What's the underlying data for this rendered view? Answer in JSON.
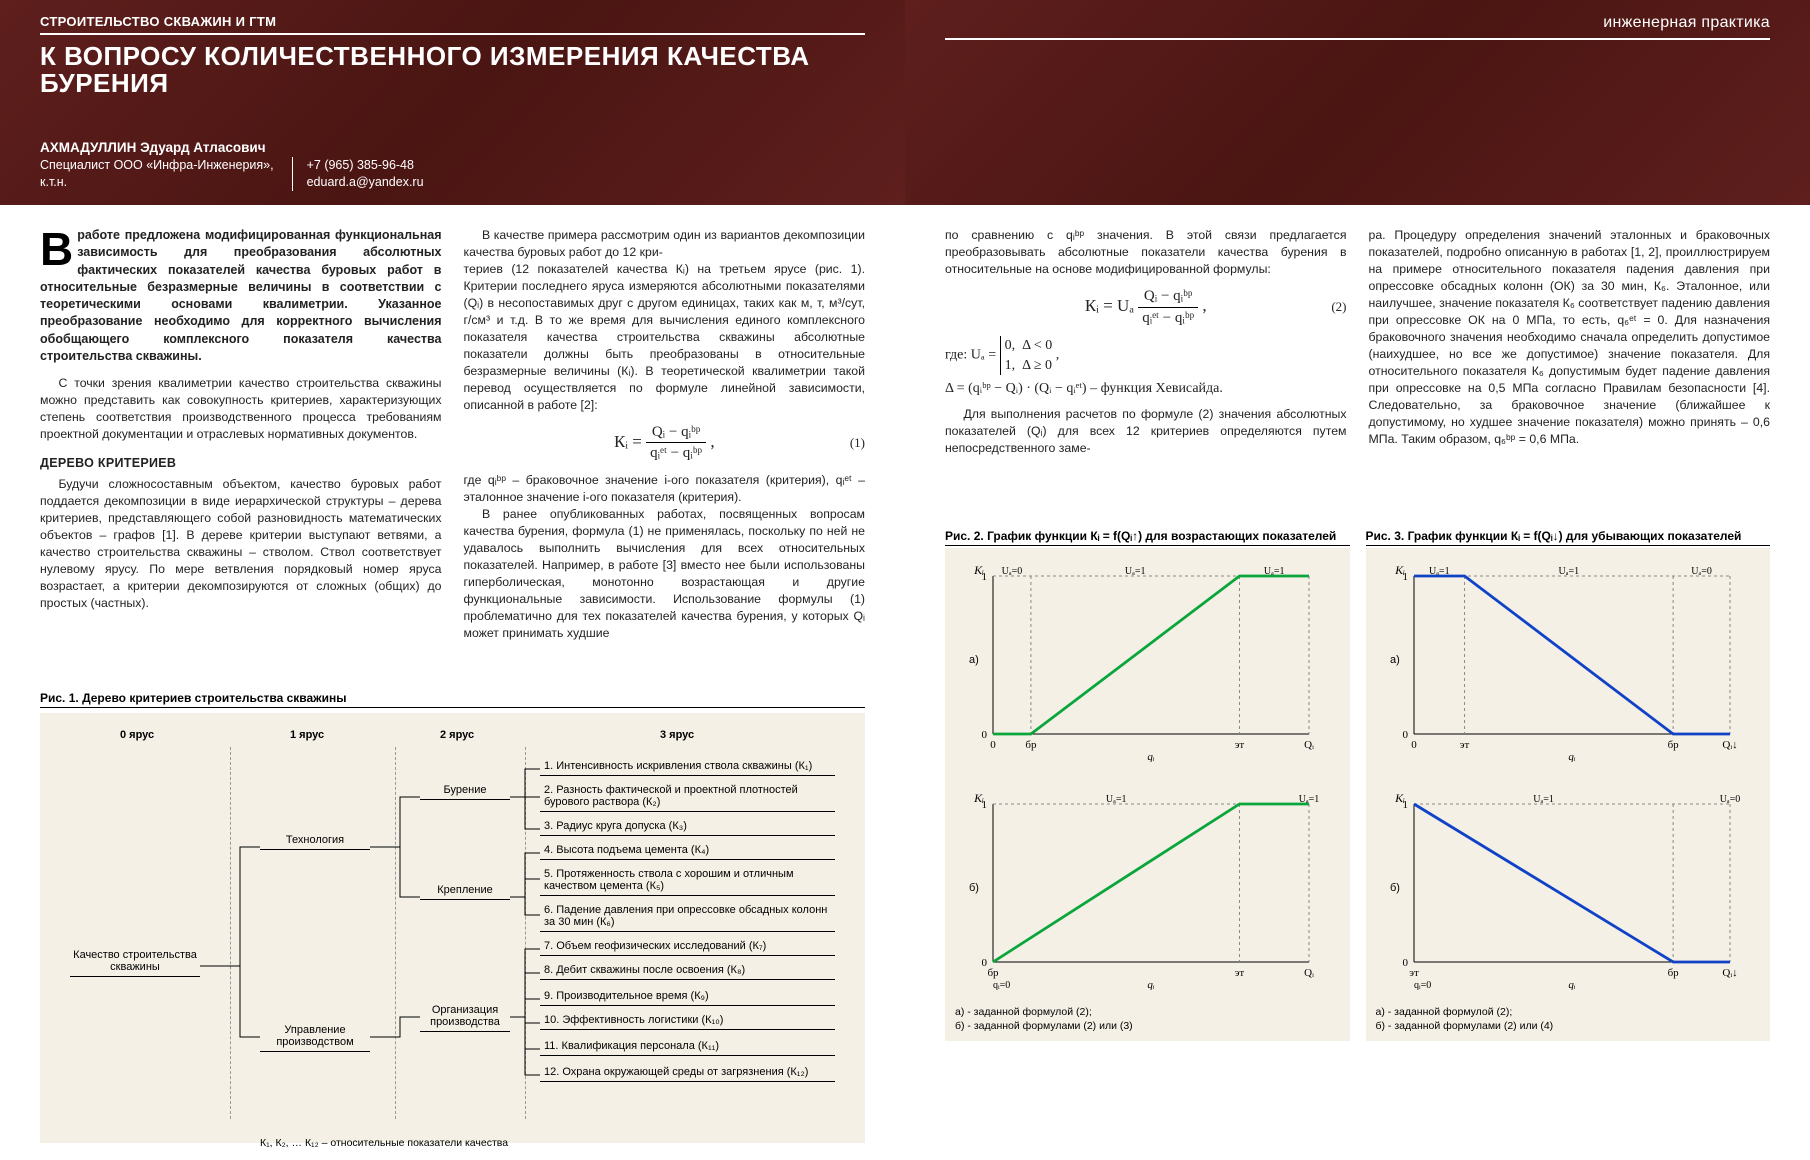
{
  "header": {
    "section": "СТРОИТЕЛЬСТВО СКВАЖИН И ГТМ",
    "title": "К ВОПРОСУ КОЛИЧЕСТВЕННОГО ИЗМЕРЕНИЯ КАЧЕСТВА БУРЕНИЯ",
    "journal": "инженерная практика",
    "author_name": "АХМАДУЛЛИН Эдуард Атласович",
    "author_role": "Специалист ООО «Инфра-Инженерия»,",
    "author_degree": "к.т.н.",
    "phone": "+7 (965) 385-96-48",
    "email": "eduard.a@yandex.ru",
    "bg_color": "#5a1a1a",
    "text_color": "#ffffff"
  },
  "abstract_text": "работе предложена модифицированная функциональная зависимость для преобразования абсолютных фактических показателей качества буровых работ в относительные безразмерные величины в соответствии с теоретическими основами квалиметрии. Указанное преобразование необходимо для корректного вычисления обобщающего комплексного показателя качества строительства скважины.",
  "left_col": {
    "p1": "С точки зрения квалиметрии качество строительства скважины можно представить как совокупность критериев, характеризующих степень соответствия производственного процесса требованиям проектной документации и отраслевых нормативных документов.",
    "h2": "ДЕРЕВО КРИТЕРИЕВ",
    "p2": "Будучи сложносоставным объектом, качество буровых работ поддается декомпозиции в виде иерархической структуры – дерева критериев, представляющего собой разновидность математических объектов – графов [1]. В дереве критерии выступают ветвями, а качество строительства скважины – стволом. Ствол соответствует нулевому ярусу. По мере ветвления порядковый номер яруса возрастает, а критерии декомпозируются от сложных (общих) до простых (частных).",
    "p3": "В качестве примера рассмотрим один из вариантов декомпозиции качества буровых работ до 12 кри-",
    "p4": "териев (12 показателей качества Кᵢ) на третьем ярусе (рис. 1). Критерии последнего яруса измеряются абсолютными показателями (Qᵢ) в несопоставимых друг с другом единицах, таких как м, т, м³/сут, г/см³ и т.д. В то же время для вычисления единого комплексного показателя качества строительства скважины абсолютные показатели должны быть преобразованы в относительные безразмерные величины (Кᵢ). В теоретической квалиметрии такой перевод осуществляется по формуле линейной зависимости, описанной в работе [2]:",
    "p5": "где qᵢᵇᵖ – браковочное значение i-ого показателя (критерия), qᵢᵉᵗ – эталонное значение i-ого показателя (критерия).",
    "p6": "В ранее опубликованных работах, посвященных вопросам качества бурения, формула (1) не применялась, поскольку по ней не удавалось выполнить вычисления для всех относительных показателей. Например, в работе [3] вместо нее были использованы гиперболическая, монотонно возрастающая и другие функциональные зависимости. Использование формулы (1) проблематично для тех показателей качества бурения, у которых Qᵢ может принимать худшие"
  },
  "formula1": {
    "lhs": "Кᵢ =",
    "num": "Qᵢ − qᵢᵇᵖ",
    "den": "qᵢᵉᵗ − qᵢᵇᵖ",
    "tag": "(1)"
  },
  "fig1": {
    "title": "Рис. 1. Дерево критериев строительства скважины",
    "tiers": [
      "0 ярус",
      "1 ярус",
      "2 ярус",
      "3 ярус"
    ],
    "root": "Качество строительства скважины",
    "tier1": [
      "Технология",
      "Управление производством"
    ],
    "tier2": [
      "Бурение",
      "Крепление",
      "Организация производства"
    ],
    "tier3": [
      "1. Интенсивность искривления ствола скважины (К₁)",
      "2. Разность фактической и проектной плотностей бурового раствора (К₂)",
      "3. Радиус круга допуска (К₃)",
      "4. Высота подъема цемента (К₄)",
      "5. Протяженность ствола с хорошим и отличным качеством цемента (К₅)",
      "6. Падение давления при опрессовке обсадных колонн за 30 мин (К₆)",
      "7. Объем геофизических исследований (К₇)",
      "8. Дебит скважины после освоения (К₈)",
      "9. Производительное время (К₉)",
      "10. Эффективность логистики (К₁₀)",
      "11. Квалификация персонала (К₁₁)",
      "12. Охрана окружающей среды от загрязнения (К₁₂)"
    ],
    "note": "К₁, К₂, … К₁₂ – относительные показатели качества",
    "bg_color": "#f5f0e6"
  },
  "right_col": {
    "p1": "по сравнению с qᵢᵇᵖ значения. В этой связи предлагается преобразовывать абсолютные показатели качества бурения в относительные на основе модифицированной формулы:",
    "p2": "где: Uₐ =",
    "p2b": "{0, Δ < 0",
    "p2c": "{1, Δ ≥ 0  ,",
    "p3": "Δ = (qᵢᵇᵖ − Qᵢ) · (Qᵢ − qᵢᵉᵗ) – функция Хевисайда.",
    "p4": "Для выполнения расчетов по формуле (2) значения абсолютных показателей (Qᵢ) для всех 12 критериев определяются путем непосредственного заме-",
    "p5": "ра. Процедуру определения значений эталонных и браковочных показателей, подробно описанную в работах [1, 2], проиллюстрируем на примере относительного показателя падения давления при опрессовке обсадных колонн (ОК) за 30 мин, К₆. Эталонное, или наилучшее, значение показателя К₆ соответствует падению давления при опрессовке ОК на 0 МПа, то есть, q₆ᵉᵗ = 0. Для назначения браковочного значения необходимо сначала определить допустимое (наихудшее, но все же допустимое) значение показателя. Для относительного показателя К₆ допустимым будет падение давления при опрессовке на 0,5 МПа согласно Правилам безопасности [4]. Следовательно, за браковочное значение (ближайшее к допустимому, но худшее значение показателя) можно принять – 0,6 МПа. Таким образом, q₆ᵇᵖ = 0,6 МПа."
  },
  "formula2": {
    "lhs": "Кᵢ = Uₐ",
    "num": "Qᵢ − qᵢᵇᵖ",
    "den": "qᵢᵉᵗ − qᵢᵇᵖ",
    "tag": "(2)"
  },
  "fig2": {
    "title": "Рис. 2. График функции Кᵢ = f(Qᵢ↑) для возрастающих показателей",
    "caption_a": "а) - заданной формулой (2);",
    "caption_b": "б) - заданной формулами (2) или (3)",
    "chart_a": {
      "line_color": "#0aa63c",
      "line_width": 2.8,
      "points": [
        [
          0,
          0
        ],
        [
          0.12,
          0
        ],
        [
          0.78,
          1
        ],
        [
          1,
          1
        ]
      ],
      "ylim": [
        0,
        1
      ],
      "xlim": [
        0,
        1
      ],
      "xticks": [
        "0",
        "бр",
        "эт",
        "Qᵢ"
      ],
      "yticks": [
        "0",
        "1",
        "Кᵢ"
      ],
      "u_labels": [
        "Uₐ=0",
        "Uₐ=1",
        "Uₐ=1"
      ],
      "a_label": "а)"
    },
    "chart_b": {
      "line_color": "#0aa63c",
      "line_width": 2.8,
      "points": [
        [
          0,
          0
        ],
        [
          0.78,
          1
        ],
        [
          1,
          1
        ]
      ],
      "ylim": [
        0,
        1
      ],
      "xlim": [
        0,
        1
      ],
      "xticks": [
        "бр",
        "",
        "эт",
        "Qᵢ"
      ],
      "xtick_sub": "qᵢ=0",
      "yticks": [
        "0",
        "1",
        "Кᵢ"
      ],
      "u_labels": [
        "Uₐ=1",
        "",
        "Uₐ=1"
      ],
      "a_label": "б)"
    }
  },
  "fig3": {
    "title": "Рис. 3. График функции Кᵢ = f(Qᵢ↓) для убывающих показателей",
    "caption_a": "а) - заданной формулой (2);",
    "caption_b": "б) - заданной формулами (2) или (4)",
    "chart_a": {
      "line_color": "#1042c8",
      "line_width": 2.8,
      "points": [
        [
          0,
          1
        ],
        [
          0.16,
          1
        ],
        [
          0.82,
          0
        ],
        [
          1,
          0
        ]
      ],
      "xticks": [
        "0",
        "эт",
        "бр",
        "Qᵢ↓"
      ],
      "yticks": [
        "0",
        "1",
        "Кᵢ"
      ],
      "u_labels": [
        "Uₐ=1",
        "Uₐ=1",
        "Uₐ=0"
      ],
      "a_label": "а)"
    },
    "chart_b": {
      "line_color": "#1042c8",
      "line_width": 2.8,
      "points": [
        [
          0,
          1
        ],
        [
          0.82,
          0
        ],
        [
          1,
          0
        ]
      ],
      "xticks": [
        "эт",
        "",
        "бр",
        "Qᵢ↓"
      ],
      "xtick_sub": "qᵢ=0",
      "yticks": [
        "0",
        "1",
        "Кᵢ"
      ],
      "u_labels": [
        "Uₐ=1",
        "",
        "Uₐ=0"
      ],
      "a_label": "б)"
    }
  },
  "colors": {
    "panel_bg": "#f5f0e6",
    "green": "#0aa63c",
    "blue": "#1042c8",
    "grid_dash": "#888888"
  }
}
